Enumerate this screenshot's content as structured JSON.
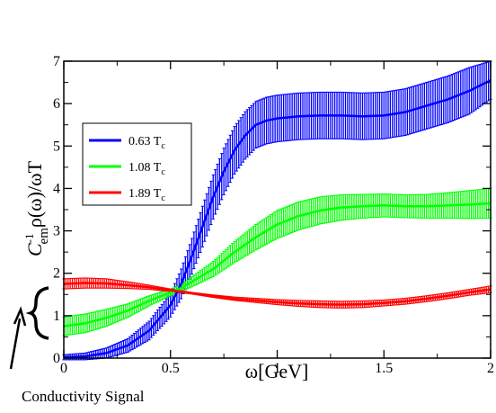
{
  "chart_data": {
    "type": "line",
    "xlabel": "ω[GeV]",
    "ylabel": {
      "prefix": "C",
      "sup": "-1",
      "sub": "em",
      "rest": "ρ(ω)/ωT"
    },
    "xlim": [
      0,
      2
    ],
    "ylim": [
      0,
      7
    ],
    "xticks": [
      "0",
      "0.5",
      "1",
      "1.5",
      "2"
    ],
    "yticks": [
      "0",
      "1",
      "2",
      "3",
      "4",
      "5",
      "6",
      "7"
    ],
    "grid": false,
    "legend_position": "upper-left",
    "series": [
      {
        "name": "0.63 T",
        "name_sub": "c",
        "color": "#0000ff",
        "x": [
          0,
          0.1,
          0.2,
          0.3,
          0.4,
          0.5,
          0.55,
          0.6,
          0.65,
          0.7,
          0.75,
          0.8,
          0.85,
          0.9,
          0.95,
          1.0,
          1.1,
          1.2,
          1.3,
          1.4,
          1.5,
          1.6,
          1.7,
          1.8,
          1.9,
          2.0
        ],
        "y": [
          0.02,
          0.04,
          0.12,
          0.3,
          0.65,
          1.25,
          1.75,
          2.4,
          3.1,
          3.8,
          4.4,
          4.9,
          5.25,
          5.5,
          5.6,
          5.65,
          5.7,
          5.72,
          5.72,
          5.7,
          5.72,
          5.8,
          5.95,
          6.1,
          6.3,
          6.55
        ],
        "err": [
          0.06,
          0.08,
          0.12,
          0.16,
          0.22,
          0.28,
          0.35,
          0.42,
          0.48,
          0.52,
          0.55,
          0.56,
          0.56,
          0.55,
          0.55,
          0.55,
          0.55,
          0.55,
          0.55,
          0.55,
          0.55,
          0.55,
          0.55,
          0.55,
          0.55,
          0.45
        ]
      },
      {
        "name": "1.08 T",
        "name_sub": "c",
        "color": "#00ff00",
        "x": [
          0,
          0.1,
          0.2,
          0.3,
          0.4,
          0.5,
          0.55,
          0.6,
          0.7,
          0.8,
          0.9,
          1.0,
          1.1,
          1.2,
          1.3,
          1.4,
          1.5,
          1.6,
          1.7,
          1.8,
          1.9,
          2.0
        ],
        "y": [
          0.75,
          0.82,
          0.95,
          1.12,
          1.35,
          1.55,
          1.65,
          1.8,
          2.1,
          2.5,
          2.85,
          3.15,
          3.35,
          3.48,
          3.55,
          3.58,
          3.6,
          3.58,
          3.58,
          3.6,
          3.62,
          3.65
        ],
        "err": [
          0.22,
          0.22,
          0.2,
          0.16,
          0.12,
          0.08,
          0.08,
          0.12,
          0.18,
          0.25,
          0.3,
          0.33,
          0.33,
          0.32,
          0.3,
          0.28,
          0.27,
          0.27,
          0.28,
          0.3,
          0.33,
          0.35
        ]
      },
      {
        "name": "1.89 T",
        "name_sub": "c",
        "color": "#ff0000",
        "x": [
          0,
          0.1,
          0.2,
          0.3,
          0.4,
          0.5,
          0.6,
          0.7,
          0.8,
          0.9,
          1.0,
          1.1,
          1.2,
          1.3,
          1.4,
          1.5,
          1.6,
          1.7,
          1.8,
          1.9,
          2.0
        ],
        "y": [
          1.75,
          1.77,
          1.76,
          1.72,
          1.67,
          1.6,
          1.53,
          1.46,
          1.4,
          1.36,
          1.32,
          1.29,
          1.27,
          1.26,
          1.27,
          1.3,
          1.34,
          1.4,
          1.47,
          1.55,
          1.62
        ],
        "err": [
          0.12,
          0.12,
          0.11,
          0.08,
          0.05,
          0.03,
          0.02,
          0.03,
          0.04,
          0.05,
          0.06,
          0.07,
          0.08,
          0.08,
          0.08,
          0.07,
          0.07,
          0.07,
          0.07,
          0.07,
          0.08
        ]
      }
    ],
    "annotation": "Conductivity Signal"
  }
}
